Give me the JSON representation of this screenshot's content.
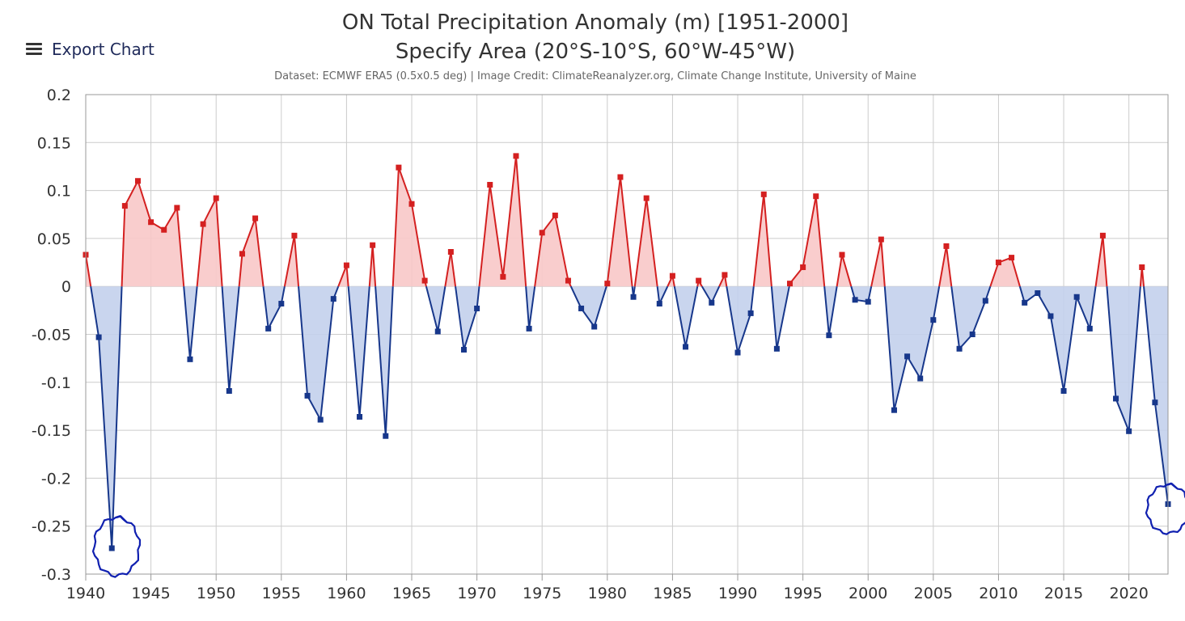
{
  "toolbar": {
    "export_label": "Export Chart",
    "export_icon": "menu-icon"
  },
  "colors": {
    "positive_line": "#d42020",
    "positive_fill": "#f8c8c8",
    "negative_line": "#17378b",
    "negative_fill": "#c3d0ec",
    "grid": "#cccccc",
    "annotation": "#1020b0"
  },
  "chart_data": {
    "type": "area",
    "title": "ON Total Precipitation Anomaly (m) [1951-2000]",
    "subtitle": "Specify Area (20°S-10°S, 60°W-45°W)",
    "credit": "Dataset: ECMWF ERA5 (0.5x0.5 deg) | Image Credit: ClimateReanalyzer.org, Climate Change Institute, University of Maine",
    "xlabel": "",
    "ylabel": "",
    "xlim": [
      1940,
      2023
    ],
    "ylim": [
      -0.3,
      0.2
    ],
    "x_ticks": [
      1940,
      1945,
      1950,
      1955,
      1960,
      1965,
      1970,
      1975,
      1980,
      1985,
      1990,
      1995,
      2000,
      2005,
      2010,
      2015,
      2020
    ],
    "y_ticks": [
      "0.2",
      "0.15",
      "0.1",
      "0.05",
      "0",
      "-0.05",
      "-0.1",
      "-0.15",
      "-0.2",
      "-0.25",
      "-0.3"
    ],
    "y_tick_values": [
      0.2,
      0.15,
      0.1,
      0.05,
      0,
      -0.05,
      -0.1,
      -0.15,
      -0.2,
      -0.25,
      -0.3
    ],
    "grid": true,
    "threshold": 0,
    "series": [
      {
        "name": "ON Total Precipitation Anomaly",
        "x": [
          1940,
          1941,
          1942,
          1943,
          1944,
          1945,
          1946,
          1947,
          1948,
          1949,
          1950,
          1951,
          1952,
          1953,
          1954,
          1955,
          1956,
          1957,
          1958,
          1959,
          1960,
          1961,
          1962,
          1963,
          1964,
          1965,
          1966,
          1967,
          1968,
          1969,
          1970,
          1971,
          1972,
          1973,
          1974,
          1975,
          1976,
          1977,
          1978,
          1979,
          1980,
          1981,
          1982,
          1983,
          1984,
          1985,
          1986,
          1987,
          1988,
          1989,
          1990,
          1991,
          1992,
          1993,
          1994,
          1995,
          1996,
          1997,
          1998,
          1999,
          2000,
          2001,
          2002,
          2003,
          2004,
          2005,
          2006,
          2007,
          2008,
          2009,
          2010,
          2011,
          2012,
          2013,
          2014,
          2015,
          2016,
          2017,
          2018,
          2019,
          2020,
          2021,
          2022,
          2023
        ],
        "values": [
          0.033,
          -0.053,
          -0.273,
          0.084,
          0.11,
          0.067,
          0.059,
          0.082,
          -0.076,
          0.065,
          0.092,
          -0.109,
          0.034,
          0.071,
          -0.044,
          -0.018,
          0.053,
          -0.114,
          -0.139,
          -0.013,
          0.022,
          -0.136,
          0.043,
          -0.156,
          0.124,
          0.086,
          0.006,
          -0.047,
          0.036,
          -0.066,
          -0.023,
          0.106,
          0.01,
          0.136,
          -0.044,
          0.056,
          0.074,
          0.006,
          -0.023,
          -0.042,
          0.003,
          0.114,
          -0.011,
          0.092,
          -0.018,
          0.011,
          -0.063,
          0.006,
          -0.017,
          0.012,
          -0.069,
          -0.028,
          0.096,
          -0.065,
          0.003,
          0.02,
          0.094,
          -0.051,
          0.033,
          -0.014,
          -0.016,
          0.049,
          -0.129,
          -0.073,
          -0.096,
          -0.035,
          0.042,
          -0.065,
          -0.05,
          -0.015,
          0.025,
          0.03,
          -0.017,
          -0.007,
          -0.031,
          -0.109,
          -0.011,
          -0.044,
          0.053,
          -0.117,
          -0.151,
          0.02,
          -0.121,
          -0.227
        ]
      }
    ],
    "annotations": [
      {
        "type": "hand-drawn-circle",
        "x": 1942,
        "y": -0.273
      },
      {
        "type": "hand-drawn-circle",
        "x": 2023,
        "y": -0.227
      }
    ]
  }
}
